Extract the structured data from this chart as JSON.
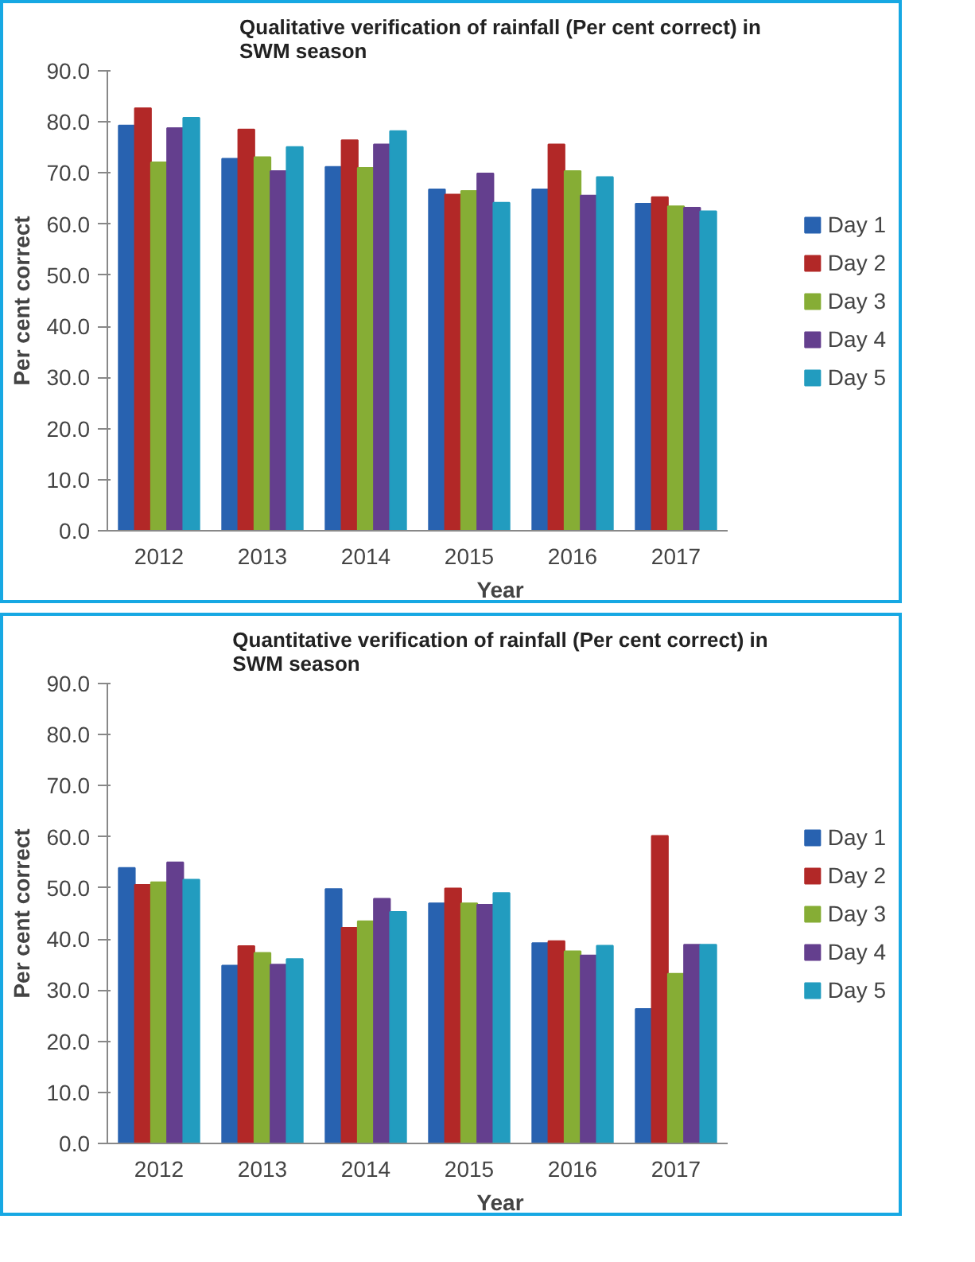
{
  "chart_data": [
    {
      "type": "bar",
      "title": "Qualitative verification of rainfall (Per cent correct) in\nSWM season",
      "xlabel": "Year",
      "ylabel": "Per cent correct",
      "categories": [
        "2012",
        "2013",
        "2014",
        "2015",
        "2016",
        "2017"
      ],
      "ylim": [
        0,
        90
      ],
      "yticks": [
        {
          "value": 0,
          "label": "0.0"
        },
        {
          "value": 10,
          "label": "10.0"
        },
        {
          "value": 20,
          "label": "20.0"
        },
        {
          "value": 30,
          "label": "30.0"
        },
        {
          "value": 40,
          "label": "40.0"
        },
        {
          "value": 50,
          "label": "50.0"
        },
        {
          "value": 60,
          "label": "60.0"
        },
        {
          "value": 70,
          "label": "70.0"
        },
        {
          "value": 80,
          "label": "80.0"
        },
        {
          "value": 90,
          "label": "90.0"
        }
      ],
      "grid": false,
      "legend": "right",
      "series": [
        {
          "name": "Day 1",
          "color": "#2862b0",
          "values": [
            79.3,
            72.8,
            71.2,
            66.8,
            66.8,
            64.0
          ]
        },
        {
          "name": "Day 2",
          "color": "#b22827",
          "values": [
            82.7,
            78.5,
            76.4,
            65.8,
            75.6,
            65.3
          ]
        },
        {
          "name": "Day 3",
          "color": "#86ad35",
          "values": [
            72.1,
            73.1,
            71.0,
            66.5,
            70.4,
            63.5
          ]
        },
        {
          "name": "Day 4",
          "color": "#643f8e",
          "values": [
            78.8,
            70.4,
            75.6,
            69.9,
            65.6,
            63.2
          ]
        },
        {
          "name": "Day 5",
          "color": "#229cbf",
          "values": [
            80.8,
            75.1,
            78.2,
            64.2,
            69.2,
            62.5
          ]
        }
      ]
    },
    {
      "type": "bar",
      "title": "Quantitative verification of rainfall (Per cent correct) in\nSWM season",
      "xlabel": "Year",
      "ylabel": "Per cent correct",
      "categories": [
        "2012",
        "2013",
        "2014",
        "2015",
        "2016",
        "2017"
      ],
      "ylim": [
        0,
        90
      ],
      "yticks": [
        {
          "value": 0,
          "label": "0.0"
        },
        {
          "value": 10,
          "label": "10.0"
        },
        {
          "value": 20,
          "label": "20.0"
        },
        {
          "value": 30,
          "label": "30.0"
        },
        {
          "value": 40,
          "label": "40.0"
        },
        {
          "value": 50,
          "label": "50.0"
        },
        {
          "value": 60,
          "label": "60.0"
        },
        {
          "value": 70,
          "label": "70.0"
        },
        {
          "value": 80,
          "label": "80.0"
        },
        {
          "value": 90,
          "label": "90.0"
        }
      ],
      "grid": false,
      "legend": "right",
      "series": [
        {
          "name": "Day 1",
          "color": "#2862b0",
          "values": [
            53.9,
            34.8,
            49.8,
            47.0,
            39.2,
            26.3
          ]
        },
        {
          "name": "Day 2",
          "color": "#b22827",
          "values": [
            50.6,
            38.6,
            42.2,
            49.9,
            39.6,
            60.2
          ]
        },
        {
          "name": "Day 3",
          "color": "#86ad35",
          "values": [
            51.1,
            37.3,
            43.5,
            47.0,
            37.6,
            33.2
          ]
        },
        {
          "name": "Day 4",
          "color": "#643f8e",
          "values": [
            55.0,
            35.0,
            47.9,
            46.7,
            36.8,
            38.9
          ]
        },
        {
          "name": "Day 5",
          "color": "#229cbf",
          "values": [
            51.6,
            36.1,
            45.3,
            49.0,
            38.7,
            38.9
          ]
        }
      ]
    }
  ]
}
